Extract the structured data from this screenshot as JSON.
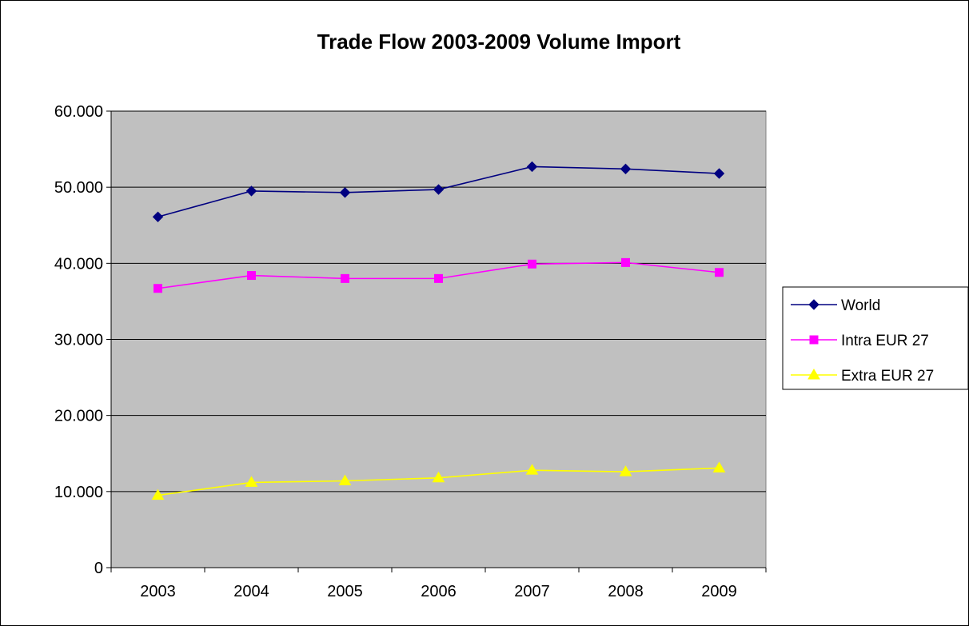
{
  "chart_data": {
    "type": "line",
    "title": "Trade Flow 2003-2009 Volume Import",
    "xlabel": "",
    "ylabel": "",
    "categories": [
      "2003",
      "2004",
      "2005",
      "2006",
      "2007",
      "2008",
      "2009"
    ],
    "ylim": [
      0,
      60000
    ],
    "yticks": [
      0,
      10000,
      20000,
      30000,
      40000,
      50000,
      60000
    ],
    "ytick_labels": [
      "0",
      "10.000",
      "20.000",
      "30.000",
      "40.000",
      "50.000",
      "60.000"
    ],
    "grid": true,
    "plot_background": "#c0c0c0",
    "legend_position": "right",
    "series": [
      {
        "name": "World",
        "color": "#000080",
        "marker": "diamond",
        "values": [
          46100,
          49500,
          49300,
          49700,
          52700,
          52400,
          51800
        ]
      },
      {
        "name": "Intra EUR 27",
        "color": "#ff00ff",
        "marker": "square",
        "values": [
          36700,
          38400,
          38000,
          38000,
          39900,
          40100,
          38800
        ]
      },
      {
        "name": "Extra EUR 27",
        "color": "#ffff00",
        "marker": "triangle",
        "values": [
          9500,
          11200,
          11400,
          11800,
          12800,
          12600,
          13100
        ]
      }
    ]
  }
}
